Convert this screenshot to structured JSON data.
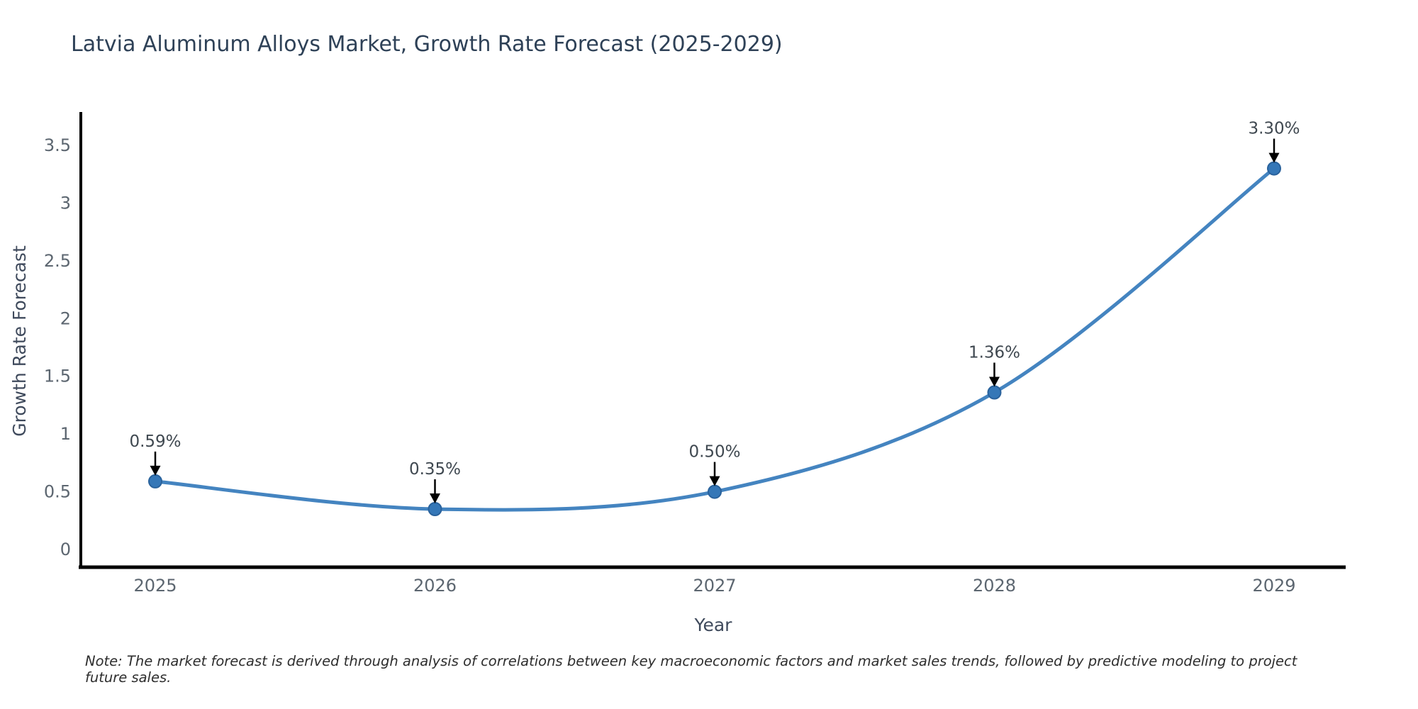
{
  "title": "Latvia Aluminum Alloys Market, Growth Rate Forecast (2025-2029)",
  "note": "Note: The market forecast is derived through analysis of correlations between key macroeconomic factors and market sales trends, followed by predictive modeling to project future sales.",
  "chart_data": {
    "type": "line",
    "title": "Latvia Aluminum Alloys Market, Growth Rate Forecast (2025-2029)",
    "xlabel": "Year",
    "ylabel": "Growth Rate Forecast",
    "x": [
      2025,
      2026,
      2027,
      2028,
      2029
    ],
    "values": [
      0.59,
      0.35,
      0.5,
      1.36,
      3.3
    ],
    "point_labels": [
      "0.59%",
      "0.35%",
      "0.50%",
      "1.36%",
      "3.30%"
    ],
    "x_tick_labels": [
      "2025",
      "2026",
      "2027",
      "2028",
      "2029"
    ],
    "y_ticks": [
      0,
      0.5,
      1,
      1.5,
      2,
      2.5,
      3,
      3.5
    ],
    "ylim": [
      0,
      3.78
    ],
    "grid": false,
    "legend": "none",
    "line_smooth": true,
    "colors": {
      "line": "#4484c0",
      "marker_fill": "#3577b7",
      "marker_edge": "#2a629c",
      "axis": "#000000",
      "arrow": "#000000",
      "title_text": "#2e4157",
      "tick_text": "#5c6670",
      "axis_label_text": "#3f4a5c"
    }
  }
}
